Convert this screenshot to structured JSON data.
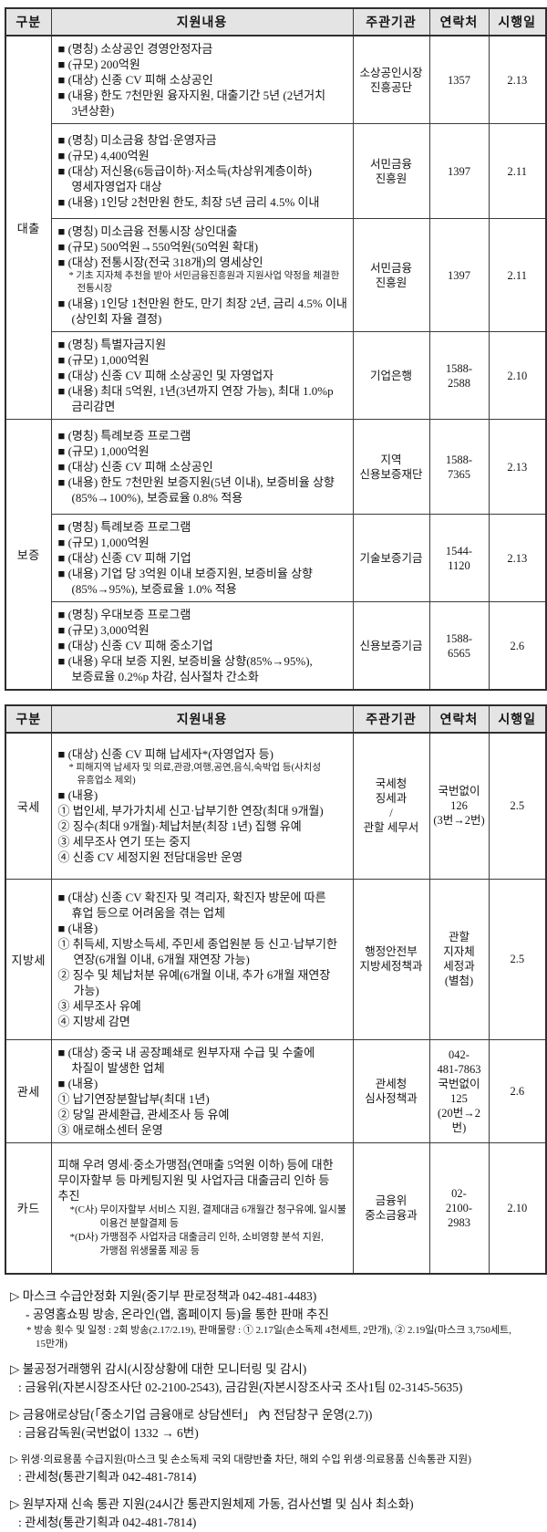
{
  "colors": {
    "header_bg": "#e4e4e4",
    "border": "#2e2e2e",
    "text": "#151515"
  },
  "table1": {
    "headers": [
      "구분",
      "지원내용",
      "주관기관",
      "연락처",
      "시행일"
    ],
    "groups": [
      {
        "category": "대출",
        "rows": [
          {
            "lines": [
              {
                "c": "b",
                "t": "■ (명칭) 소상공인 경영안정자금"
              },
              {
                "c": "b",
                "t": "■ (규모) 200억원"
              },
              {
                "c": "b",
                "t": "■ (대상) 신종 CV 피해 소상공인"
              },
              {
                "c": "b",
                "t": "■ (내용) 한도 7천만원 융자지원, 대출기간 5년 (2년거치 3년상환)"
              }
            ],
            "agency": "소상공인시장\n진흥공단",
            "contact": "1357",
            "date": "2.13"
          },
          {
            "lines": [
              {
                "c": "b",
                "t": "■ (명칭) 미소금융 창업·운영자금"
              },
              {
                "c": "b",
                "t": "■ (규모) 4,400억원"
              },
              {
                "c": "b",
                "t": "■ (대상) 저신용(6등급이하)·저소득(차상위계층이하) 영세자영업자 대상"
              },
              {
                "c": "b",
                "t": "■ (내용) 1인당 2천만원 한도, 최장 5년 금리 4.5% 이내"
              }
            ],
            "agency": "서민금융\n진흥원",
            "contact": "1397",
            "date": "2.11"
          },
          {
            "lines": [
              {
                "c": "b",
                "t": "■ (명칭) 미소금융 전통시장 상인대출"
              },
              {
                "c": "b",
                "t": "■ (규모) 500억원→550억원(50억원 확대)"
              },
              {
                "c": "b",
                "t": "■ (대상) 전통시장(전국 318개)의 영세상인"
              },
              {
                "c": "s",
                "t": "* 기초 지자체 추천을 받아 서민금융진흥원과 지원사업 약정을 체결한 전통시장"
              },
              {
                "c": "b",
                "t": "■ (내용) 1인당 1천만원 한도, 만기 최장 2년, 금리 4.5% 이내(상인회 자율 결정)"
              }
            ],
            "agency": "서민금융\n진흥원",
            "contact": "1397",
            "date": "2.11"
          },
          {
            "lines": [
              {
                "c": "b",
                "t": "■ (명칭) 특별자금지원"
              },
              {
                "c": "b",
                "t": "■ (규모) 1,000억원"
              },
              {
                "c": "b",
                "t": "■ (대상) 신종 CV 피해 소상공인 및 자영업자"
              },
              {
                "c": "b",
                "t": "■ (내용) 최대 5억원, 1년(3년까지 연장 가능), 최대 1.0%p 금리감면"
              }
            ],
            "agency": "기업은행",
            "contact": "1588-\n2588",
            "date": "2.10"
          }
        ]
      },
      {
        "category": "보증",
        "rows": [
          {
            "lines": [
              {
                "c": "b",
                "t": "■ (명칭) 특례보증 프로그램"
              },
              {
                "c": "b",
                "t": "■ (규모) 1,000억원"
              },
              {
                "c": "b",
                "t": "■ (대상) 신종 CV 피해 소상공인"
              },
              {
                "c": "b",
                "t": "■ (내용) 한도 7천만원 보증지원(5년 이내), 보증비율 상향(85%→100%), 보증료율 0.8% 적용"
              }
            ],
            "agency": "지역\n신용보증재단",
            "contact": "1588-\n7365",
            "date": "2.13"
          },
          {
            "lines": [
              {
                "c": "b",
                "t": "■ (명칭) 특례보증 프로그램"
              },
              {
                "c": "b",
                "t": "■ (규모) 1,000억원"
              },
              {
                "c": "b",
                "t": "■ (대상) 신종 CV 피해 기업"
              },
              {
                "c": "b",
                "t": "■ (내용) 기업 당 3억원 이내 보증지원, 보증비율 상향(85%→95%), 보증료율 1.0% 적용"
              }
            ],
            "agency": "기술보증기금",
            "contact": "1544-\n1120",
            "date": "2.13"
          },
          {
            "lines": [
              {
                "c": "b",
                "t": "■ (명칭) 우대보증 프로그램"
              },
              {
                "c": "b",
                "t": "■ (규모) 3,000억원"
              },
              {
                "c": "b",
                "t": "■ (대상) 신종 CV 피해 중소기업"
              },
              {
                "c": "b",
                "t": "■ (내용) 우대 보증 지원, 보증비율 상향(85%→95%), 보증료율 0.2%p 차감, 심사절차 간소화"
              }
            ],
            "agency": "신용보증기금",
            "contact": "1588-\n6565",
            "date": "2.6"
          }
        ]
      }
    ]
  },
  "table2": {
    "headers": [
      "구분",
      "지원내용",
      "주관기관",
      "연락처",
      "시행일"
    ],
    "rows": [
      {
        "category": "국세",
        "lines": [
          {
            "c": "b",
            "t": "■ (대상) 신종 CV 피해 납세자*(자영업자 등)"
          },
          {
            "c": "s",
            "t": "* 피해지역 납세자 및 의료,관광,여행,공연,음식,숙박업 등(사치성 유흥업소 제외)"
          },
          {
            "c": "b",
            "t": "■ (내용)"
          },
          {
            "c": "n",
            "t": "① 법인세, 부가가치세 신고·납부기한 연장(최대 9개월)"
          },
          {
            "c": "n",
            "t": "② 징수(최대 9개월)·체납처분(최장 1년) 집행 유예"
          },
          {
            "c": "n",
            "t": "③ 세무조사 연기 또는 중지"
          },
          {
            "c": "n",
            "t": "④ 신종 CV 세정지원 전담대응반 운영"
          }
        ],
        "agency": "국세청\n징세과\n/\n관할 세무서",
        "contact": "국번없이\n126\n(3번→2번)",
        "date": "2.5"
      },
      {
        "category": "지방세",
        "lines": [
          {
            "c": "b",
            "t": "■ (대상) 신종 CV 확진자 및 격리자, 확진자 방문에 따른 휴업 등으로 어려움을 겪는 업체"
          },
          {
            "c": "b",
            "t": "■ (내용)"
          },
          {
            "c": "n",
            "t": "① 취득세, 지방소득세, 주민세 종업원분 등 신고·납부기한 연장(6개월 이내, 6개월 재연장 가능)"
          },
          {
            "c": "n",
            "t": "② 징수 및 체납처분 유예(6개월 이내, 추가 6개월 재연장 가능)"
          },
          {
            "c": "n",
            "t": "③ 세무조사 유예"
          },
          {
            "c": "n",
            "t": "④ 지방세 감면"
          }
        ],
        "agency": "행정안전부\n지방세정책과",
        "contact": "관할\n지자체\n세정과\n(별첨)",
        "date": "2.5"
      },
      {
        "category": "관세",
        "lines": [
          {
            "c": "b",
            "t": "■ (대상) 중국 내 공장폐쇄로 원부자재 수급 및 수출에 차질이 발생한 업체"
          },
          {
            "c": "b",
            "t": "■ (내용)"
          },
          {
            "c": "n",
            "t": "① 납기연장분할납부(최대 1년)"
          },
          {
            "c": "n",
            "t": "② 당일 관세환급, 관세조사 등 유예"
          },
          {
            "c": "n",
            "t": "③ 애로해소센터 운영"
          }
        ],
        "agency": "관세청\n심사정책과",
        "contact": "042-\n481-7863\n국번없이\n125\n(20번→2번)",
        "date": "2.6"
      },
      {
        "category": "카드",
        "lines": [
          {
            "c": "p",
            "t": "피해 우려 영세·중소가맹점(연매출 5억원 이하) 등에 대한 무이자할부 등 마케팅지원 및 사업자금 대출금리 인하 등 추진"
          },
          {
            "c": "ps",
            "t": "*(C사) 무이자할부 서비스 지원, 결제대금 6개월간 청구유예, 일시불 이용건 분할결제 등"
          },
          {
            "c": "ps",
            "t": "*(D사) 가맹점주 사업자금 대출금리 인하, 소비영향 분석 지원, 가맹점 위생물품 제공 등"
          }
        ],
        "agency": "금융위\n중소금융과",
        "contact": "02-\n2100-\n2983",
        "date": "2.10"
      }
    ]
  },
  "notes_lines": [
    {
      "c": "m",
      "t": "▷ 마스크 수급안정화 지원(중기부 판로정책과 042-481-4483)"
    },
    {
      "c": "d",
      "t": "- 공영홈쇼핑 방송, 온라인(앱, 홈페이지 등)을 통한 판매 추진"
    },
    {
      "c": "ss",
      "t": "* 방송 횟수 및 일정 : 2회 방송(2.17/2.19), 판매물량 : ① 2.17일(손소독제 4천세트, 2만개), ② 2.19일(마스크 3,750세트, 15만개)"
    },
    {
      "c": "m",
      "t": "▷ 불공정거래행위 감시(시장상황에 대한 모니터링 및 감시)"
    },
    {
      "c": "c",
      "t": ": 금융위(자본시장조사단 02-2100-2543), 금감원(자본시장조사국 조사1팀 02-3145-5635)"
    },
    {
      "c": "m",
      "t": "▷ 금융애로상담(「중소기업 금융애로 상담센터」 內 전담창구 운영(2.7))"
    },
    {
      "c": "c",
      "t": ": 금융감독원(국번없이 1332 → 6번)"
    },
    {
      "c": "ms",
      "t": "▷ 위생·의료용품 수급지원(마스크 및 손소독제 국외 대량반출 차단, 해외 수입 위생·의료용품 신속통관 지원)"
    },
    {
      "c": "c",
      "t": ": 관세청(통관기획과 042-481-7814)"
    },
    {
      "c": "m",
      "t": "▷ 원부자재 신속 통관 지원(24시간 통관지원체제 가동, 검사선별 및 심사 최소화)"
    },
    {
      "c": "c",
      "t": ": 관세청(통관기획과 042-481-7814)"
    }
  ]
}
